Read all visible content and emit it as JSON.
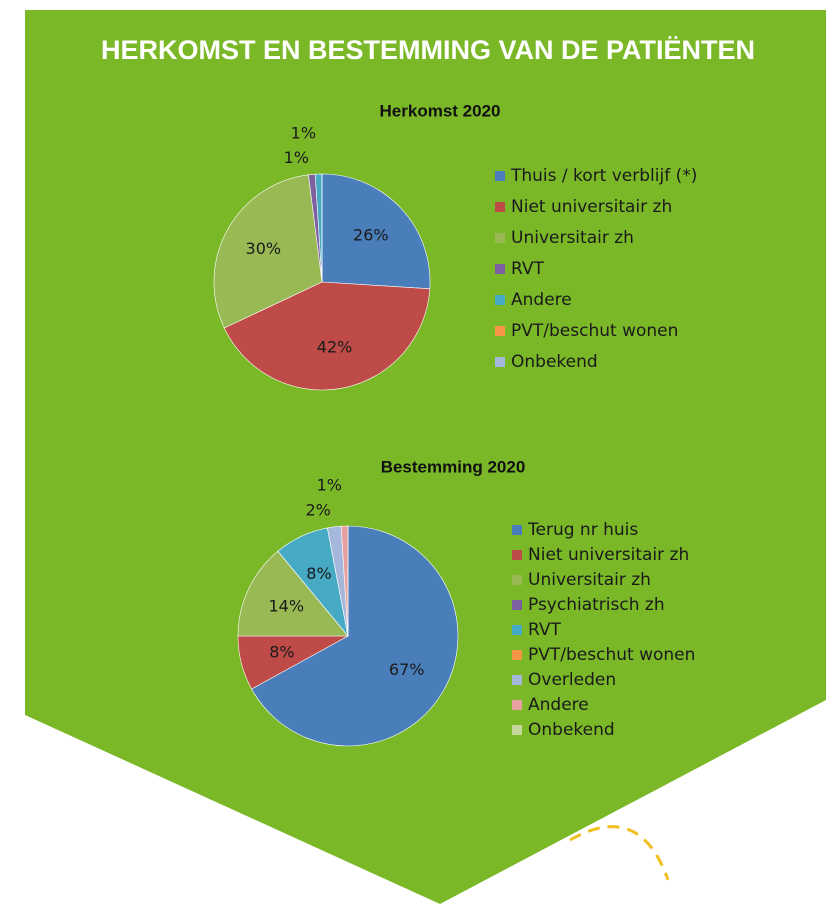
{
  "title": "HERKOMST EN BESTEMMING VAN DE PATIËNTEN",
  "chart_data": [
    {
      "type": "pie",
      "title": "Herkomst 2020",
      "categories": [
        "Thuis / kort verblijf (*)",
        "Niet universitair zh",
        "Universitair zh",
        "RVT",
        "Andere",
        "PVT/beschut wonen",
        "Onbekend"
      ],
      "values": [
        26,
        42,
        30,
        1,
        1,
        0,
        0
      ],
      "value_labels": [
        "26%",
        "42%",
        "30%",
        "1%",
        "1%",
        null,
        null
      ],
      "colors": [
        "#4a7ebb",
        "#be4b48",
        "#98b954",
        "#7d60a0",
        "#46aac5",
        "#f79646",
        "#a5b8db"
      ]
    },
    {
      "type": "pie",
      "title": "Bestemming 2020",
      "categories": [
        "Terug nr huis",
        "Niet universitair zh",
        "Universitair zh",
        "Psychiatrisch zh",
        "RVT",
        "PVT/beschut wonen",
        "Overleden",
        "Andere",
        "Onbekend"
      ],
      "values": [
        67,
        8,
        14,
        0,
        8,
        0,
        2,
        1,
        0
      ],
      "value_labels": [
        "67%",
        "8%",
        "14%",
        null,
        "8%",
        null,
        "2%",
        "1%",
        null
      ],
      "colors": [
        "#4a7ebb",
        "#be4b48",
        "#98b954",
        "#7d60a0",
        "#46aac5",
        "#f79646",
        "#a5b8db",
        "#e6a0a0",
        "#c4d79b"
      ]
    }
  ]
}
